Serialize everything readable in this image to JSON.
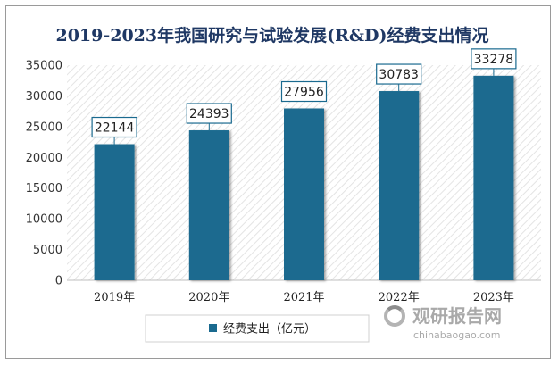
{
  "chart_data": {
    "type": "bar",
    "title": "2019-2023年我国研究与试验发展(R&D)经费支出情况",
    "categories": [
      "2019年",
      "2020年",
      "2021年",
      "2022年",
      "2023年"
    ],
    "series": [
      {
        "name": "经费支出（亿元）",
        "values": [
          22144,
          24393,
          27956,
          30783,
          33278
        ]
      }
    ],
    "data_labels": [
      "22144",
      "24393",
      "27956",
      "30783",
      "33278"
    ],
    "yticks": [
      "0",
      "5000",
      "10000",
      "15000",
      "20000",
      "25000",
      "30000",
      "35000"
    ],
    "ylim": [
      0,
      35000
    ],
    "xlabel": "",
    "ylabel": "",
    "grid": false,
    "legend_position": "bottom-left",
    "bar_color": "#1a6a8f"
  },
  "watermark": {
    "main": "观研报告网",
    "sub": "chinabaogao.com",
    "icon": "ring-logo-icon"
  }
}
